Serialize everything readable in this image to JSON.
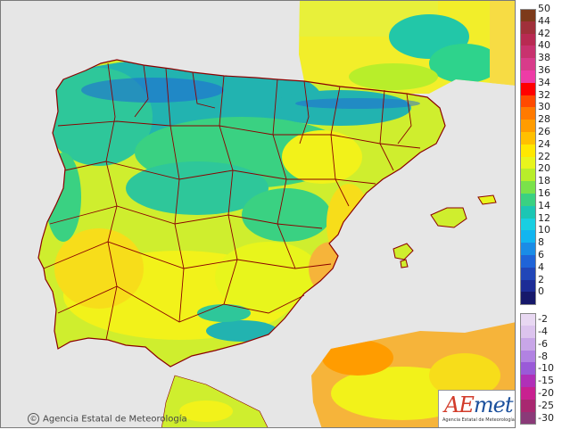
{
  "map": {
    "copyright_text": "Agencia Estatal de Meteorología",
    "copyright_symbol": "©",
    "logo": {
      "mark_prefix": "AE",
      "mark_suffix": "met",
      "subtitle": "Agencia Estatal de Meteorología"
    },
    "colors": {
      "sea": "#e6e6e6",
      "border": "#8b0000",
      "land_base": "#cfee2e",
      "cool": "#2ec79a",
      "cooler": "#22b3b0",
      "warm": "#f2f21a",
      "warmer": "#f7dd1a",
      "hot": "#f6b43a"
    }
  },
  "legend": {
    "unit_hint": "",
    "positive": [
      {
        "label": "50",
        "color": "#7d3a1a"
      },
      {
        "label": "44",
        "color": "#a0303a"
      },
      {
        "label": "42",
        "color": "#b82a52"
      },
      {
        "label": "40",
        "color": "#c8326e"
      },
      {
        "label": "38",
        "color": "#d83b8a"
      },
      {
        "label": "36",
        "color": "#ee3ca6"
      },
      {
        "label": "34",
        "color": "#ff0000"
      },
      {
        "label": "32",
        "color": "#ff4a00"
      },
      {
        "label": "30",
        "color": "#ff7a00"
      },
      {
        "label": "28",
        "color": "#ff9c00"
      },
      {
        "label": "26",
        "color": "#ffc000"
      },
      {
        "label": "24",
        "color": "#ffe800"
      },
      {
        "label": "22",
        "color": "#e8f51c"
      },
      {
        "label": "20",
        "color": "#b8ee2a"
      },
      {
        "label": "18",
        "color": "#7ae24a"
      },
      {
        "label": "16",
        "color": "#3ad182"
      },
      {
        "label": "14",
        "color": "#1cc6b4"
      },
      {
        "label": "12",
        "color": "#18cfe2"
      },
      {
        "label": "10",
        "color": "#12b5f0"
      },
      {
        "label": "8",
        "color": "#1a8ce6"
      },
      {
        "label": "6",
        "color": "#1f64d8"
      },
      {
        "label": "4",
        "color": "#2146b8"
      },
      {
        "label": "2",
        "color": "#1d2c96"
      },
      {
        "label": "0",
        "color": "#16186a"
      }
    ],
    "negative": [
      {
        "label": "-2",
        "color": "#e8d8f2"
      },
      {
        "label": "-4",
        "color": "#dcc4ee"
      },
      {
        "label": "-6",
        "color": "#c8a6e8"
      },
      {
        "label": "-8",
        "color": "#b182e2"
      },
      {
        "label": "-10",
        "color": "#9a5ad8"
      },
      {
        "label": "-15",
        "color": "#b030b8"
      },
      {
        "label": "-20",
        "color": "#c82090"
      },
      {
        "label": "-25",
        "color": "#a82870"
      },
      {
        "label": "-30",
        "color": "#8a3a78"
      }
    ]
  }
}
